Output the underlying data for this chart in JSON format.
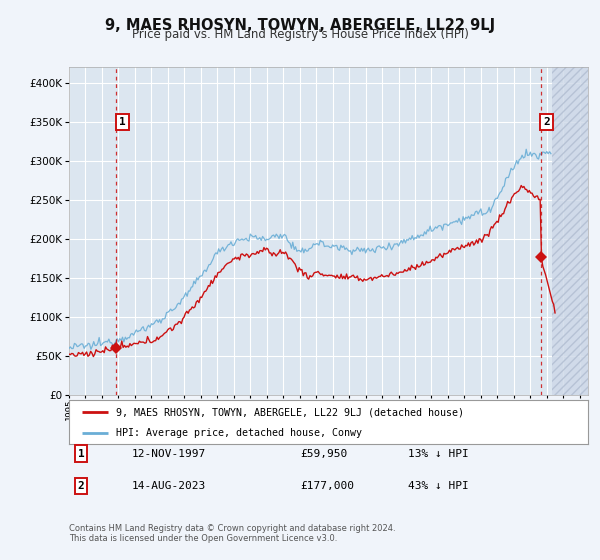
{
  "title": "9, MAES RHOSYN, TOWYN, ABERGELE, LL22 9LJ",
  "subtitle": "Price paid vs. HM Land Registry's House Price Index (HPI)",
  "xlim": [
    1995.0,
    2026.5
  ],
  "ylim": [
    0,
    420000
  ],
  "yticks": [
    0,
    50000,
    100000,
    150000,
    200000,
    250000,
    300000,
    350000,
    400000
  ],
  "ytick_labels": [
    "£0",
    "£50K",
    "£100K",
    "£150K",
    "£200K",
    "£250K",
    "£300K",
    "£350K",
    "£400K"
  ],
  "background_color": "#f0f4fa",
  "plot_bg_color": "#dce6f0",
  "hatch_bg_color": "#cdd8e8",
  "grid_color": "#ffffff",
  "hpi_color": "#6aaed6",
  "price_color": "#cc1111",
  "sale1_date": 1997.87,
  "sale1_price": 59950,
  "sale2_date": 2023.62,
  "sale2_price": 177000,
  "legend_line1": "9, MAES RHOSYN, TOWYN, ABERGELE, LL22 9LJ (detached house)",
  "legend_line2": "HPI: Average price, detached house, Conwy",
  "table_row1": [
    "1",
    "12-NOV-1997",
    "£59,950",
    "13% ↓ HPI"
  ],
  "table_row2": [
    "2",
    "14-AUG-2023",
    "£177,000",
    "43% ↓ HPI"
  ],
  "footnote1": "Contains HM Land Registry data © Crown copyright and database right 2024.",
  "footnote2": "This data is licensed under the Open Government Licence v3.0.",
  "hpi_data_x": [
    1995.0,
    1995.08,
    1995.17,
    1995.25,
    1995.33,
    1995.42,
    1995.5,
    1995.58,
    1995.67,
    1995.75,
    1995.83,
    1995.92,
    1996.0,
    1996.08,
    1996.17,
    1996.25,
    1996.33,
    1996.42,
    1996.5,
    1996.58,
    1996.67,
    1996.75,
    1996.83,
    1996.92,
    1997.0,
    1997.08,
    1997.17,
    1997.25,
    1997.33,
    1997.42,
    1997.5,
    1997.58,
    1997.67,
    1997.75,
    1997.83,
    1997.92,
    1998.0,
    1998.08,
    1998.17,
    1998.25,
    1998.33,
    1998.42,
    1998.5,
    1998.58,
    1998.67,
    1998.75,
    1998.83,
    1998.92,
    1999.0,
    1999.08,
    1999.17,
    1999.25,
    1999.33,
    1999.42,
    1999.5,
    1999.58,
    1999.67,
    1999.75,
    1999.83,
    1999.92,
    2000.0,
    2000.08,
    2000.17,
    2000.25,
    2000.33,
    2000.42,
    2000.5,
    2000.58,
    2000.67,
    2000.75,
    2000.83,
    2000.92,
    2001.0,
    2001.08,
    2001.17,
    2001.25,
    2001.33,
    2001.42,
    2001.5,
    2001.58,
    2001.67,
    2001.75,
    2001.83,
    2001.92,
    2002.0,
    2002.08,
    2002.17,
    2002.25,
    2002.33,
    2002.42,
    2002.5,
    2002.58,
    2002.67,
    2002.75,
    2002.83,
    2002.92,
    2003.0,
    2003.08,
    2003.17,
    2003.25,
    2003.33,
    2003.42,
    2003.5,
    2003.58,
    2003.67,
    2003.75,
    2003.83,
    2003.92,
    2004.0,
    2004.08,
    2004.17,
    2004.25,
    2004.33,
    2004.42,
    2004.5,
    2004.58,
    2004.67,
    2004.75,
    2004.83,
    2004.92,
    2005.0,
    2005.08,
    2005.17,
    2005.25,
    2005.33,
    2005.42,
    2005.5,
    2005.58,
    2005.67,
    2005.75,
    2005.83,
    2005.92,
    2006.0,
    2006.08,
    2006.17,
    2006.25,
    2006.33,
    2006.42,
    2006.5,
    2006.58,
    2006.67,
    2006.75,
    2006.83,
    2006.92,
    2007.0,
    2007.08,
    2007.17,
    2007.25,
    2007.33,
    2007.42,
    2007.5,
    2007.58,
    2007.67,
    2007.75,
    2007.83,
    2007.92,
    2008.0,
    2008.08,
    2008.17,
    2008.25,
    2008.33,
    2008.42,
    2008.5,
    2008.58,
    2008.67,
    2008.75,
    2008.83,
    2008.92,
    2009.0,
    2009.08,
    2009.17,
    2009.25,
    2009.33,
    2009.42,
    2009.5,
    2009.58,
    2009.67,
    2009.75,
    2009.83,
    2009.92,
    2010.0,
    2010.08,
    2010.17,
    2010.25,
    2010.33,
    2010.42,
    2010.5,
    2010.58,
    2010.67,
    2010.75,
    2010.83,
    2010.92,
    2011.0,
    2011.08,
    2011.17,
    2011.25,
    2011.33,
    2011.42,
    2011.5,
    2011.58,
    2011.67,
    2011.75,
    2011.83,
    2011.92,
    2012.0,
    2012.08,
    2012.17,
    2012.25,
    2012.33,
    2012.42,
    2012.5,
    2012.58,
    2012.67,
    2012.75,
    2012.83,
    2012.92,
    2013.0,
    2013.08,
    2013.17,
    2013.25,
    2013.33,
    2013.42,
    2013.5,
    2013.58,
    2013.67,
    2013.75,
    2013.83,
    2013.92,
    2014.0,
    2014.08,
    2014.17,
    2014.25,
    2014.33,
    2014.42,
    2014.5,
    2014.58,
    2014.67,
    2014.75,
    2014.83,
    2014.92,
    2015.0,
    2015.08,
    2015.17,
    2015.25,
    2015.33,
    2015.42,
    2015.5,
    2015.58,
    2015.67,
    2015.75,
    2015.83,
    2015.92,
    2016.0,
    2016.08,
    2016.17,
    2016.25,
    2016.33,
    2016.42,
    2016.5,
    2016.58,
    2016.67,
    2016.75,
    2016.83,
    2016.92,
    2017.0,
    2017.08,
    2017.17,
    2017.25,
    2017.33,
    2017.42,
    2017.5,
    2017.58,
    2017.67,
    2017.75,
    2017.83,
    2017.92,
    2018.0,
    2018.08,
    2018.17,
    2018.25,
    2018.33,
    2018.42,
    2018.5,
    2018.58,
    2018.67,
    2018.75,
    2018.83,
    2018.92,
    2019.0,
    2019.08,
    2019.17,
    2019.25,
    2019.33,
    2019.42,
    2019.5,
    2019.58,
    2019.67,
    2019.75,
    2019.83,
    2019.92,
    2020.0,
    2020.08,
    2020.17,
    2020.25,
    2020.33,
    2020.42,
    2020.5,
    2020.58,
    2020.67,
    2020.75,
    2020.83,
    2020.92,
    2021.0,
    2021.08,
    2021.17,
    2021.25,
    2021.33,
    2021.42,
    2021.5,
    2021.58,
    2021.67,
    2021.75,
    2021.83,
    2021.92,
    2022.0,
    2022.08,
    2022.17,
    2022.25,
    2022.33,
    2022.42,
    2022.5,
    2022.58,
    2022.67,
    2022.75,
    2022.83,
    2022.92,
    2023.0,
    2023.08,
    2023.17,
    2023.25,
    2023.33,
    2023.42,
    2023.5,
    2023.58,
    2023.67,
    2023.75,
    2023.83,
    2023.92,
    2024.0,
    2024.08,
    2024.17,
    2024.25
  ],
  "price_data_x_end": 2024.5
}
